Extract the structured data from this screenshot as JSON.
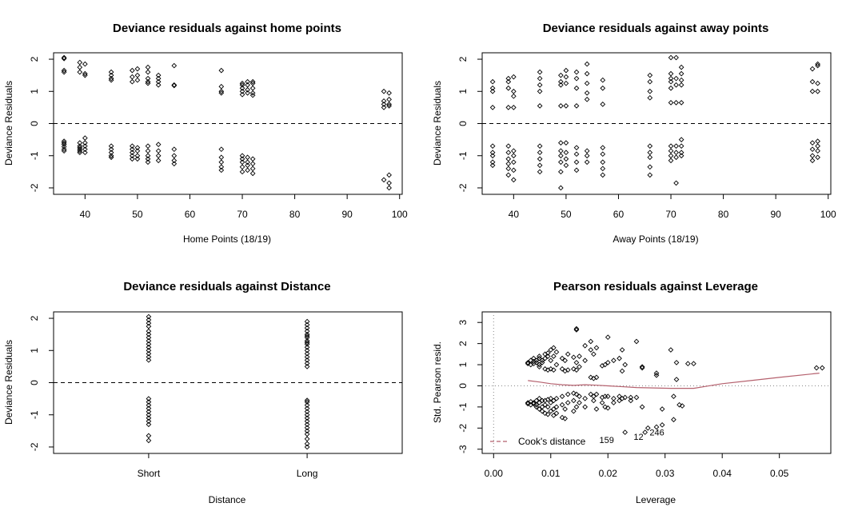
{
  "chart_data": [
    {
      "type": "scatter",
      "title": "Deviance residuals against home points",
      "xlabel": "Home Points (18/19)",
      "ylabel": "Deviance Residuals",
      "xlim": [
        34,
        100.5
      ],
      "ylim": [
        -2.2,
        2.2
      ],
      "xticks": [
        40,
        50,
        60,
        70,
        80,
        90,
        100
      ],
      "yticks": [
        -2,
        -1,
        0,
        1,
        2
      ],
      "hline": {
        "y": 0,
        "style": "dashed"
      },
      "points": [
        {
          "x": 36,
          "y": [
            2.05,
            2.02,
            1.65,
            1.6,
            -0.55,
            -0.6,
            -0.65,
            -0.72,
            -0.8,
            -0.85
          ]
        },
        {
          "x": 39,
          "y": [
            1.9,
            1.75,
            1.6,
            -0.6,
            -0.7,
            -0.75,
            -0.8,
            -0.85,
            -0.9
          ]
        },
        {
          "x": 40,
          "y": [
            1.85,
            1.55,
            1.5,
            -0.45,
            -0.6,
            -0.7,
            -0.8,
            -0.9
          ]
        },
        {
          "x": 45,
          "y": [
            1.6,
            1.5,
            1.4,
            1.35,
            -0.7,
            -0.8,
            -0.9,
            -1.0,
            -1.05
          ]
        },
        {
          "x": 49,
          "y": [
            1.65,
            1.45,
            1.3,
            -0.7,
            -0.8,
            -0.9,
            -1.0,
            -1.1
          ]
        },
        {
          "x": 50,
          "y": [
            1.7,
            1.5,
            1.35,
            -0.75,
            -0.85,
            -1.0,
            -1.1
          ]
        },
        {
          "x": 52,
          "y": [
            1.75,
            1.6,
            1.4,
            1.3,
            1.25,
            -0.7,
            -0.85,
            -1.0,
            -1.1,
            -1.2
          ]
        },
        {
          "x": 54,
          "y": [
            1.5,
            1.4,
            1.3,
            1.2,
            -0.65,
            -0.85,
            -1.0,
            -1.15
          ]
        },
        {
          "x": 57,
          "y": [
            1.8,
            1.2,
            1.18,
            -0.8,
            -1.0,
            -1.15,
            -1.25
          ]
        },
        {
          "x": 66,
          "y": [
            1.65,
            1.15,
            1.0,
            0.95,
            -0.8,
            -1.05,
            -1.2,
            -1.35,
            -1.45
          ]
        },
        {
          "x": 70,
          "y": [
            1.25,
            1.2,
            1.1,
            1.0,
            0.9,
            -1.0,
            -1.1,
            -1.2,
            -1.35,
            -1.5
          ]
        },
        {
          "x": 71,
          "y": [
            1.3,
            1.2,
            1.05,
            0.95,
            -1.05,
            -1.2,
            -1.3,
            -1.45
          ]
        },
        {
          "x": 72,
          "y": [
            1.3,
            1.25,
            1.1,
            0.95,
            0.88,
            -1.1,
            -1.25,
            -1.4,
            -1.55
          ]
        },
        {
          "x": 97,
          "y": [
            1.0,
            0.7,
            0.6,
            0.5,
            -1.75
          ]
        },
        {
          "x": 98,
          "y": [
            0.95,
            0.75,
            0.6,
            0.55,
            -1.6,
            -1.85,
            -2.0
          ]
        }
      ]
    },
    {
      "type": "scatter",
      "title": "Deviance residuals against away points",
      "xlabel": "Away Points (18/19)",
      "ylabel": "Deviance Residuals",
      "xlim": [
        34,
        100.5
      ],
      "ylim": [
        -2.2,
        2.2
      ],
      "xticks": [
        40,
        50,
        60,
        70,
        80,
        90,
        100
      ],
      "yticks": [
        -2,
        -1,
        0,
        1,
        2
      ],
      "hline": {
        "y": 0,
        "style": "dashed"
      },
      "points": [
        {
          "x": 36,
          "y": [
            1.3,
            1.1,
            1.0,
            0.5,
            -0.7,
            -0.9,
            -1.0,
            -1.2,
            -1.3
          ]
        },
        {
          "x": 39,
          "y": [
            1.4,
            1.3,
            1.1,
            0.5,
            -0.7,
            -0.9,
            -1.1,
            -1.25,
            -1.4,
            -1.6
          ]
        },
        {
          "x": 40,
          "y": [
            1.45,
            1.0,
            0.85,
            0.5,
            -0.85,
            -1.0,
            -1.2,
            -1.45,
            -1.75
          ]
        },
        {
          "x": 45,
          "y": [
            1.6,
            1.4,
            1.2,
            1.0,
            0.55,
            -0.7,
            -0.9,
            -1.1,
            -1.3,
            -1.5
          ]
        },
        {
          "x": 49,
          "y": [
            1.5,
            1.3,
            1.2,
            0.55,
            -0.6,
            -0.85,
            -1.0,
            -1.2,
            -1.5,
            -2.0
          ]
        },
        {
          "x": 50,
          "y": [
            1.65,
            1.45,
            1.25,
            0.55,
            -0.6,
            -0.9,
            -1.1,
            -1.3
          ]
        },
        {
          "x": 52,
          "y": [
            1.6,
            1.4,
            1.1,
            0.55,
            -0.75,
            -0.95,
            -1.2,
            -1.45
          ]
        },
        {
          "x": 54,
          "y": [
            1.85,
            1.55,
            1.25,
            0.95,
            0.75,
            -0.85,
            -1.0,
            -1.2
          ]
        },
        {
          "x": 57,
          "y": [
            1.35,
            1.1,
            0.6,
            -0.75,
            -0.95,
            -1.2,
            -1.4,
            -1.6
          ]
        },
        {
          "x": 66,
          "y": [
            1.5,
            1.3,
            1.0,
            0.8,
            -0.7,
            -0.9,
            -1.05,
            -1.35,
            -1.6
          ]
        },
        {
          "x": 70,
          "y": [
            2.05,
            1.55,
            1.4,
            1.3,
            1.1,
            0.65,
            -0.7,
            -0.85,
            -1.0,
            -1.15
          ]
        },
        {
          "x": 71,
          "y": [
            2.05,
            1.4,
            1.2,
            0.65,
            -0.7,
            -0.9,
            -1.05,
            -1.85
          ]
        },
        {
          "x": 72,
          "y": [
            1.75,
            1.55,
            1.35,
            1.2,
            0.65,
            -0.5,
            -0.7,
            -0.9,
            -1.0
          ]
        },
        {
          "x": 97,
          "y": [
            1.7,
            1.3,
            1.0,
            -0.6,
            -0.8,
            -1.0,
            -1.15
          ]
        },
        {
          "x": 98,
          "y": [
            1.85,
            1.8,
            1.25,
            1.0,
            -0.55,
            -0.7,
            -0.85,
            -1.05
          ]
        }
      ]
    },
    {
      "type": "scatter",
      "title": "Deviance residuals against Distance",
      "xlabel": "Distance",
      "ylabel": "Deviance Residuals",
      "categories": [
        "Short",
        "Long"
      ],
      "ylim": [
        -2.2,
        2.2
      ],
      "yticks": [
        -2,
        -1,
        0,
        1,
        2
      ],
      "hline": {
        "y": 0,
        "style": "dashed"
      },
      "points": [
        {
          "x": "Short",
          "y": [
            2.05,
            1.95,
            1.85,
            1.75,
            1.6,
            1.5,
            1.4,
            1.3,
            1.2,
            1.1,
            1.0,
            0.9,
            0.8,
            0.7,
            -0.5,
            -0.6,
            -0.7,
            -0.8,
            -0.9,
            -1.0,
            -1.1,
            -1.2,
            -1.3,
            -1.65,
            -1.8
          ]
        },
        {
          "x": "Long",
          "y": [
            1.9,
            1.8,
            1.7,
            1.6,
            1.5,
            1.45,
            1.4,
            1.3,
            1.25,
            1.2,
            1.1,
            1.0,
            0.9,
            0.8,
            0.7,
            0.6,
            0.5,
            -0.55,
            -0.6,
            -0.7,
            -0.8,
            -0.9,
            -1.0,
            -1.1,
            -1.2,
            -1.3,
            -1.4,
            -1.5,
            -1.6,
            -1.75,
            -1.9,
            -2.0
          ]
        }
      ]
    },
    {
      "type": "scatter",
      "title": "Pearson residuals against Leverage",
      "xlabel": "Leverage",
      "ylabel": "Std. Pearson resid.",
      "xlim": [
        -0.002,
        0.059
      ],
      "ylim": [
        -3.2,
        3.5
      ],
      "xticks": [
        0.0,
        0.01,
        0.02,
        0.03,
        0.04,
        0.05
      ],
      "xtick_labels": [
        "0.00",
        "0.01",
        "0.02",
        "0.03",
        "0.04",
        "0.05"
      ],
      "yticks": [
        -3,
        -2,
        -1,
        0,
        1,
        2,
        3
      ],
      "hline": {
        "y": 0,
        "style": "dotted"
      },
      "vline": {
        "x": 0,
        "style": "dotted"
      },
      "smooth_line": {
        "color": "#b5616e",
        "x": [
          0.006,
          0.008,
          0.01,
          0.012,
          0.014,
          0.016,
          0.018,
          0.02,
          0.022,
          0.025,
          0.028,
          0.031,
          0.035,
          0.04,
          0.045,
          0.05,
          0.057
        ],
        "y": [
          0.25,
          0.18,
          0.1,
          0.05,
          0.02,
          0.05,
          0.03,
          0.0,
          -0.03,
          -0.08,
          -0.1,
          -0.12,
          -0.12,
          0.1,
          0.25,
          0.4,
          0.6
        ]
      },
      "legend": {
        "label": "Cook's distance",
        "placement": "bottom-left",
        "color": "#b5616e",
        "style": "dashed"
      },
      "annotations": [
        {
          "text": "159",
          "x": 0.0185,
          "y": -2.7
        },
        {
          "text": "12",
          "x": 0.0245,
          "y": -2.55
        },
        {
          "text": "246",
          "x": 0.0273,
          "y": -2.35
        }
      ],
      "points": [
        {
          "x": 0.006,
          "y": [
            1.1,
            1.05,
            -0.8,
            -0.85
          ]
        },
        {
          "x": 0.0065,
          "y": [
            1.2,
            1.0,
            -0.75,
            -0.9
          ]
        },
        {
          "x": 0.007,
          "y": [
            1.3,
            1.15,
            1.05,
            -0.8,
            -0.85
          ]
        },
        {
          "x": 0.0075,
          "y": [
            1.1,
            1.2,
            -0.7,
            -0.9,
            -1.0
          ]
        },
        {
          "x": 0.008,
          "y": [
            1.4,
            1.3,
            1.0,
            0.9,
            -0.6,
            -0.8,
            -1.1
          ]
        },
        {
          "x": 0.0085,
          "y": [
            1.2,
            1.1,
            -0.7,
            -1.0,
            -1.2
          ]
        },
        {
          "x": 0.009,
          "y": [
            1.5,
            1.3,
            0.8,
            -0.7,
            -0.9,
            -1.3
          ]
        },
        {
          "x": 0.0095,
          "y": [
            1.55,
            1.4,
            0.75,
            -0.65,
            -1.0,
            -1.35
          ]
        },
        {
          "x": 0.01,
          "y": [
            1.7,
            1.2,
            0.8,
            -0.6,
            -0.8,
            -1.2
          ]
        },
        {
          "x": 0.0105,
          "y": [
            1.8,
            1.4,
            0.75,
            -0.7,
            -1.1,
            -1.4
          ]
        },
        {
          "x": 0.011,
          "y": [
            1.6,
            1.0,
            -0.6,
            -1.0,
            -1.3
          ]
        },
        {
          "x": 0.012,
          "y": [
            1.3,
            0.8,
            -0.5,
            -0.9,
            -1.5
          ]
        },
        {
          "x": 0.0125,
          "y": [
            1.2,
            0.7,
            -1.1,
            -1.55
          ]
        },
        {
          "x": 0.013,
          "y": [
            1.5,
            0.75,
            -0.4,
            -0.8
          ]
        },
        {
          "x": 0.014,
          "y": [
            1.35,
            0.8,
            -0.35,
            -0.7,
            -1.2
          ]
        },
        {
          "x": 0.0145,
          "y": [
            2.7,
            2.65,
            1.1,
            0.75,
            -0.4,
            -1.0
          ]
        },
        {
          "x": 0.015,
          "y": [
            1.4,
            0.9,
            -0.5,
            -0.8
          ]
        },
        {
          "x": 0.016,
          "y": [
            1.9,
            1.2,
            -0.6,
            -1.0
          ]
        },
        {
          "x": 0.017,
          "y": [
            2.1,
            1.7,
            0.4,
            -0.4
          ]
        },
        {
          "x": 0.0175,
          "y": [
            1.5,
            0.35,
            -0.5,
            -0.7
          ]
        },
        {
          "x": 0.018,
          "y": [
            1.8,
            0.4,
            -0.4,
            -1.1
          ]
        },
        {
          "x": 0.019,
          "y": [
            0.95,
            -0.55,
            -0.8
          ]
        },
        {
          "x": 0.0195,
          "y": [
            1.0,
            -0.5,
            -1.0
          ]
        },
        {
          "x": 0.02,
          "y": [
            2.3,
            1.1,
            -0.5,
            -1.05
          ]
        },
        {
          "x": 0.021,
          "y": [
            1.2,
            -0.6,
            -0.8
          ]
        },
        {
          "x": 0.022,
          "y": [
            1.3,
            -0.5,
            -0.7
          ]
        },
        {
          "x": 0.0225,
          "y": [
            1.7,
            0.7,
            -0.6
          ]
        },
        {
          "x": 0.023,
          "y": [
            1.0,
            -0.55,
            -2.2
          ]
        },
        {
          "x": 0.024,
          "y": [
            -0.55,
            -0.7
          ]
        },
        {
          "x": 0.025,
          "y": [
            2.1,
            -0.55
          ]
        },
        {
          "x": 0.026,
          "y": [
            0.9,
            0.85,
            -1.0
          ]
        },
        {
          "x": 0.0265,
          "y": [
            -2.2
          ]
        },
        {
          "x": 0.027,
          "y": [
            -2.0
          ]
        },
        {
          "x": 0.0285,
          "y": [
            0.6,
            0.5,
            -1.95
          ]
        },
        {
          "x": 0.0295,
          "y": [
            -1.85,
            -1.1
          ]
        },
        {
          "x": 0.031,
          "y": [
            1.7
          ]
        },
        {
          "x": 0.0315,
          "y": [
            -0.5,
            -1.6
          ]
        },
        {
          "x": 0.032,
          "y": [
            1.1,
            0.3
          ]
        },
        {
          "x": 0.0325,
          "y": [
            -0.9
          ]
        },
        {
          "x": 0.033,
          "y": [
            -0.95
          ]
        },
        {
          "x": 0.034,
          "y": [
            1.05
          ]
        },
        {
          "x": 0.035,
          "y": [
            1.05
          ]
        },
        {
          "x": 0.0565,
          "y": [
            0.85
          ]
        },
        {
          "x": 0.0575,
          "y": [
            0.85
          ]
        }
      ]
    }
  ]
}
